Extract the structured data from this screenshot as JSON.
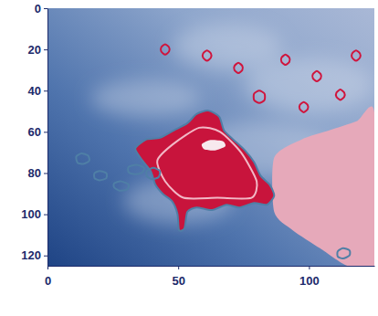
{
  "chart_data": {
    "type": "contour",
    "xlim": [
      0,
      125
    ],
    "ylim": [
      125,
      0
    ],
    "xticks": [
      0,
      50,
      100
    ],
    "yticks": [
      0,
      20,
      40,
      60,
      80,
      100,
      120
    ],
    "series": [
      {
        "type": "area",
        "color": "#e6a9ba",
        "x": [
          86.7,
          97.2,
          107.7,
          118.2,
          125,
          125,
          114.7,
          104.2,
          93.7,
          86.7
        ],
        "values": [
          72.5,
          63.7,
          59.3,
          54.9,
          50.5,
          124.8,
          125,
          116.5,
          107.7,
          98.9
        ]
      },
      {
        "type": "area",
        "color": "#c8143c",
        "x": [
          61.5,
          65.7,
          67.5,
          71.0,
          75.5,
          79.0,
          81.5,
          85.0,
          86.7,
          83.9,
          79.0,
          73.4,
          68.5,
          62.9,
          57.0,
          53.5,
          52.4,
          50.3,
          49.7,
          47.6,
          44.1,
          41.3,
          39.5,
          36.0,
          33.6,
          37.8,
          43.0,
          48.3,
          53.5,
          57.0
        ],
        "values": [
          49.7,
          52.7,
          59.3,
          63.7,
          69.0,
          74.7,
          81.3,
          85.7,
          91.0,
          95.4,
          94.5,
          96.7,
          95.4,
          98.0,
          96.7,
          98.9,
          106.8,
          107.7,
          99.8,
          93.6,
          90.1,
          85.7,
          79.1,
          73.4,
          68.1,
          63.7,
          62.9,
          59.3,
          55.8,
          51.4
        ]
      },
      {
        "type": "line",
        "color": "#f2b8c6",
        "x": [
          58,
          66,
          74,
          80,
          78,
          65,
          52,
          45,
          42,
          48
        ],
        "values": [
          58,
          60,
          70,
          84,
          92,
          92,
          92,
          84,
          74,
          66
        ]
      },
      {
        "type": "area",
        "color": "#f7e9ee",
        "x": [
          59,
          62,
          67,
          68,
          64,
          60
        ],
        "values": [
          66,
          64,
          64.5,
          67,
          69,
          68.5
        ]
      },
      {
        "type": "line",
        "color": "#4f7fa6",
        "x": [
          61.5,
          65.7,
          67.5,
          71.0,
          75.5,
          79.0,
          81.5,
          85.0,
          86.7,
          83.9,
          79.0,
          73.4,
          68.5,
          62.9,
          57.0,
          53.5,
          52.4,
          50.3,
          49.7,
          47.6,
          44.1,
          41.3,
          39.5,
          36.0,
          33.6,
          37.8,
          43.0,
          48.3,
          53.5,
          57.0
        ],
        "values": [
          49.7,
          52.7,
          59.3,
          63.7,
          69.0,
          74.7,
          81.3,
          85.7,
          91.0,
          95.4,
          94.5,
          96.7,
          95.4,
          98.0,
          96.7,
          98.9,
          106.8,
          107.7,
          99.8,
          93.6,
          90.1,
          85.7,
          79.1,
          73.4,
          68.1,
          63.7,
          62.9,
          59.3,
          55.8,
          51.4
        ]
      },
      {
        "type": "line",
        "color": "#4f7fa6",
        "x": [
          11,
          13,
          15.5,
          16,
          14,
          11.5
        ],
        "values": [
          72,
          70.5,
          71.5,
          74,
          75.5,
          75
        ]
      },
      {
        "type": "line",
        "color": "#4f7fa6",
        "x": [
          18,
          20,
          22.5,
          22.5,
          20,
          18
        ],
        "values": [
          80,
          79,
          80,
          82.5,
          83.5,
          82.5
        ]
      },
      {
        "type": "line",
        "color": "#4f7fa6",
        "x": [
          25.5,
          28,
          31,
          30.5,
          27.5,
          25.5
        ],
        "values": [
          85,
          84,
          85.5,
          88,
          88.5,
          87
        ]
      },
      {
        "type": "line",
        "color": "#4f7fa6",
        "x": [
          31,
          34,
          37,
          36,
          33,
          31
        ],
        "values": [
          77,
          76,
          77.5,
          80,
          80.5,
          79.5
        ]
      },
      {
        "type": "line",
        "color": "#4f7fa6",
        "x": [
          38,
          40.5,
          43,
          42.5,
          40,
          38
        ],
        "values": [
          79,
          77.5,
          79,
          82,
          83,
          81.5
        ]
      },
      {
        "type": "line",
        "color": "#4f7fa6",
        "x": [
          111,
          113,
          115.5,
          115.5,
          113,
          111
        ],
        "values": [
          118,
          116.5,
          117.5,
          120,
          121.5,
          120.5
        ]
      },
      {
        "type": "line",
        "color": "#d0143c",
        "x": [
          43.5,
          45,
          46.5,
          46.5,
          45,
          43.5
        ],
        "values": [
          19,
          17.5,
          19,
          21,
          22.5,
          21
        ]
      },
      {
        "type": "line",
        "color": "#d0143c",
        "x": [
          59.5,
          61,
          62.5,
          62.5,
          61,
          59.5
        ],
        "values": [
          22,
          20.5,
          22,
          24,
          25.5,
          24
        ]
      },
      {
        "type": "line",
        "color": "#d0143c",
        "x": [
          71.5,
          73,
          74.5,
          74.5,
          73,
          71.5
        ],
        "values": [
          28,
          26.5,
          28,
          30,
          31.5,
          30
        ]
      },
      {
        "type": "line",
        "color": "#d0143c",
        "x": [
          89.5,
          91,
          92.5,
          92.5,
          91,
          89.5
        ],
        "values": [
          24,
          22.5,
          24,
          26,
          27.5,
          26
        ]
      },
      {
        "type": "line",
        "color": "#d0143c",
        "x": [
          101.5,
          103,
          104.5,
          104.5,
          103,
          101.5
        ],
        "values": [
          32,
          30.5,
          32,
          34,
          35.5,
          34
        ]
      },
      {
        "type": "line",
        "color": "#d0143c",
        "x": [
          116.5,
          118,
          119.5,
          119.5,
          118,
          116.5
        ],
        "values": [
          22,
          20.5,
          22,
          24,
          25.5,
          24
        ]
      },
      {
        "type": "line",
        "color": "#d0143c",
        "x": [
          79,
          81,
          83,
          83,
          81,
          79
        ],
        "values": [
          41.5,
          40,
          41.5,
          44.5,
          46,
          44.5
        ]
      },
      {
        "type": "line",
        "color": "#d0143c",
        "x": [
          96.5,
          98,
          99.5,
          99.5,
          98,
          96.5
        ],
        "values": [
          47,
          45.5,
          47,
          49,
          50.5,
          49
        ]
      },
      {
        "type": "line",
        "color": "#d0143c",
        "x": [
          110.5,
          112,
          113.5,
          113.5,
          112,
          110.5
        ],
        "values": [
          41,
          39.5,
          41,
          43,
          44.5,
          43
        ]
      }
    ]
  }
}
